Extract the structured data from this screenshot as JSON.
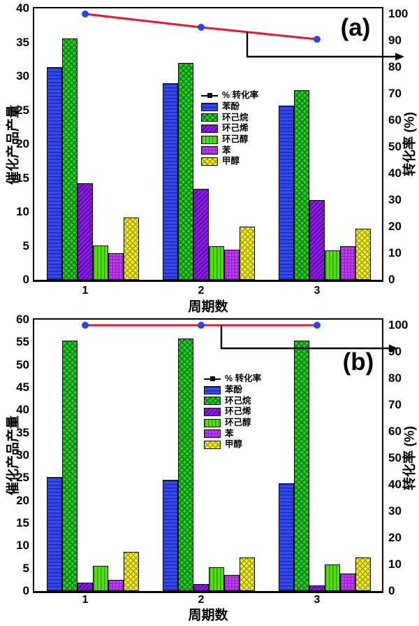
{
  "styles": {
    "background": "#ffffff",
    "frame_color": "#000000",
    "text_color": "#000000",
    "line_color": "#e8192c",
    "marker_color": "#2745e9",
    "bar_border_color": "#000000",
    "series": {
      "phenol": {
        "fill": "#3548ec",
        "hatch": "horizontal",
        "hatch_color": "#1a2aae"
      },
      "cyclohexane": {
        "fill": "#2acc2a",
        "hatch": "cross-diagonal",
        "hatch_color": "#0a7d0f"
      },
      "cyclohexene": {
        "fill": "#8c1ae2",
        "hatch": "diagonal",
        "hatch_color": "#54099c"
      },
      "cyclohexanol": {
        "fill": "#55e013",
        "hatch": "vertical",
        "hatch_color": "#2f9b07"
      },
      "benzene": {
        "fill": "#c345ef",
        "hatch": "grid",
        "hatch_color": "#9a22cd"
      },
      "methanol": {
        "fill": "#f1ee2d",
        "hatch": "cross-diagonal",
        "hatch_color": "#a8a511"
      }
    }
  },
  "chart_data": [
    {
      "type": "bar+line",
      "panel_label": "(a)",
      "xlabel": "周期数",
      "ylabel_left": "催化产品产量",
      "ylabel_right": "转化率 (%)",
      "categories": [
        "1",
        "2",
        "3"
      ],
      "ylim_left": [
        0,
        40
      ],
      "ylim_right": [
        0,
        100
      ],
      "yticks_left": [
        "0",
        "5",
        "10",
        "15",
        "20",
        "25",
        "30",
        "35",
        "40"
      ],
      "yticks_right": [
        "0",
        "10",
        "20",
        "30",
        "40",
        "50",
        "60",
        "70",
        "80",
        "90",
        "100"
      ],
      "grid": false,
      "legend_position": "inside-center-left",
      "bar_series": [
        {
          "key": "phenol",
          "name": "苯酚",
          "values": [
            31.3,
            29.0,
            25.7
          ]
        },
        {
          "key": "cyclohexane",
          "name": "环己烷",
          "values": [
            35.6,
            32.0,
            27.9
          ]
        },
        {
          "key": "cyclohexene",
          "name": "环己烯",
          "values": [
            14.2,
            13.4,
            11.8
          ]
        },
        {
          "key": "cyclohexanol",
          "name": "环己醇",
          "values": [
            5.1,
            4.9,
            4.3
          ]
        },
        {
          "key": "benzene",
          "name": "苯",
          "values": [
            3.9,
            4.4,
            5.0
          ]
        },
        {
          "key": "methanol",
          "name": "甲醇",
          "values": [
            9.2,
            7.8,
            7.5
          ]
        }
      ],
      "line_series": {
        "name": "% 转化率",
        "axis": "right",
        "values": [
          100,
          95,
          90.5
        ]
      }
    },
    {
      "type": "bar+line",
      "panel_label": "(b)",
      "xlabel": "周期数",
      "ylabel_left": "催化产品产量",
      "ylabel_right": "转化率 (%)",
      "categories": [
        "1",
        "2",
        "3"
      ],
      "ylim_left": [
        0,
        60
      ],
      "ylim_right": [
        0,
        100
      ],
      "yticks_left": [
        "0",
        "5",
        "10",
        "15",
        "20",
        "25",
        "30",
        "35",
        "40",
        "45",
        "50",
        "55",
        "60"
      ],
      "yticks_right": [
        "0",
        "10",
        "20",
        "30",
        "40",
        "50",
        "60",
        "70",
        "80",
        "90",
        "100"
      ],
      "grid": false,
      "legend_position": "inside-center-left",
      "bar_series": [
        {
          "key": "phenol",
          "name": "苯酚",
          "values": [
            25.2,
            24.6,
            23.8
          ]
        },
        {
          "key": "cyclohexane",
          "name": "环己烷",
          "values": [
            55.4,
            55.8,
            55.4
          ]
        },
        {
          "key": "cyclohexene",
          "name": "环己烯",
          "values": [
            1.8,
            1.5,
            1.3
          ]
        },
        {
          "key": "cyclohexanol",
          "name": "环己醇",
          "values": [
            5.5,
            5.2,
            5.9
          ]
        },
        {
          "key": "benzene",
          "name": "苯",
          "values": [
            2.4,
            3.5,
            3.9
          ]
        },
        {
          "key": "methanol",
          "name": "甲醇",
          "values": [
            8.7,
            7.5,
            7.5
          ]
        }
      ],
      "line_series": {
        "name": "% 转化率",
        "axis": "right",
        "values": [
          100,
          100,
          100
        ]
      }
    }
  ]
}
